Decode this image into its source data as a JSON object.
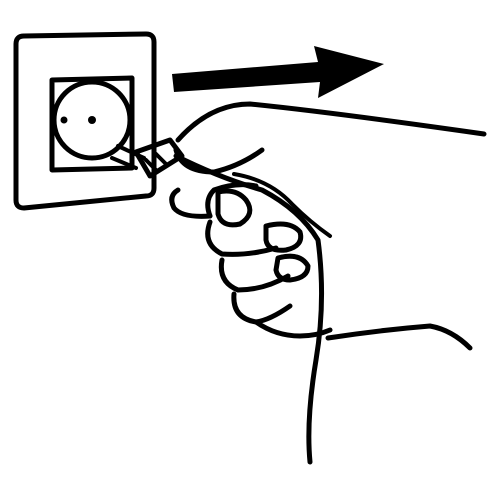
{
  "illustration": {
    "subject": "",
    "colors": {
      "ink": "#000000",
      "paper": "#ffffff"
    },
    "icons": [
      "wall-socket-icon",
      "plug-icon",
      "hand-icon",
      "cable-icon",
      "arrow-right-icon"
    ]
  }
}
